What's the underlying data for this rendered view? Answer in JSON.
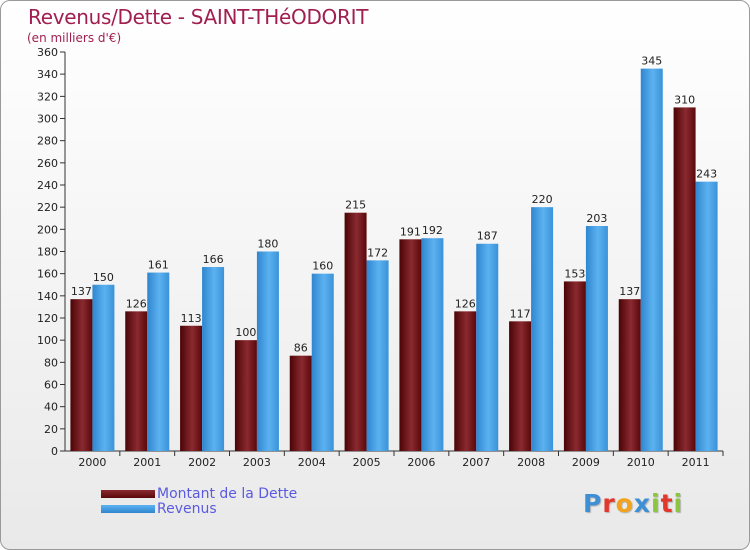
{
  "title": "Revenus/Dette - SAINT-THéODORIT",
  "subtitle": "(en milliers d'€)",
  "logo": [
    "P",
    "r",
    "o",
    "x",
    "i",
    "t",
    "i"
  ],
  "colors": {
    "dette": "#6b0d10",
    "revenus": "#4ba3e8",
    "title": "#a11e50"
  },
  "chart_data": {
    "type": "bar",
    "categories": [
      "2000",
      "2001",
      "2002",
      "2003",
      "2004",
      "2005",
      "2006",
      "2007",
      "2008",
      "2009",
      "2010",
      "2011"
    ],
    "series": [
      {
        "name": "Montant de la Dette",
        "values": [
          137,
          126,
          113,
          100,
          86,
          215,
          191,
          126,
          117,
          153,
          137,
          310
        ]
      },
      {
        "name": "Revenus",
        "values": [
          150,
          161,
          166,
          180,
          160,
          172,
          192,
          187,
          220,
          203,
          345,
          243
        ]
      }
    ],
    "ylim": [
      0,
      360
    ],
    "yticks": [
      0,
      20,
      40,
      60,
      80,
      100,
      120,
      140,
      160,
      180,
      200,
      220,
      240,
      260,
      280,
      300,
      320,
      340,
      360
    ],
    "grid": false,
    "legend": "bottom-left"
  }
}
